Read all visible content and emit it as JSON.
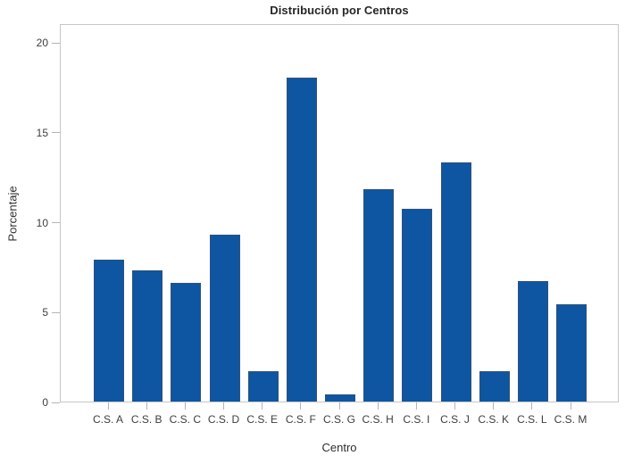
{
  "chart_data": {
    "type": "bar",
    "title": "Distribución por Centros",
    "xlabel": "Centro",
    "ylabel": "Porcentaje",
    "categories": [
      "C.S. A",
      "C.S. B",
      "C.S. C",
      "C.S. D",
      "C.S. E",
      "C.S. F",
      "C.S. G",
      "C.S. H",
      "C.S. I",
      "C.S. J",
      "C.S. K",
      "C.S. L",
      "C.S. M"
    ],
    "values": [
      7.9,
      7.3,
      6.6,
      9.3,
      1.7,
      18.0,
      0.4,
      11.8,
      10.7,
      13.3,
      1.7,
      6.7,
      5.4
    ],
    "yticks": [
      0,
      5,
      10,
      15,
      20
    ],
    "ylim": [
      0,
      21.05
    ],
    "grid": false,
    "legend": null,
    "bar_color": "#0e56a1",
    "bar_edge_color": "#30517c",
    "frame_color": "#c6c6c6",
    "tick_text_color": "#3d3d3d"
  }
}
